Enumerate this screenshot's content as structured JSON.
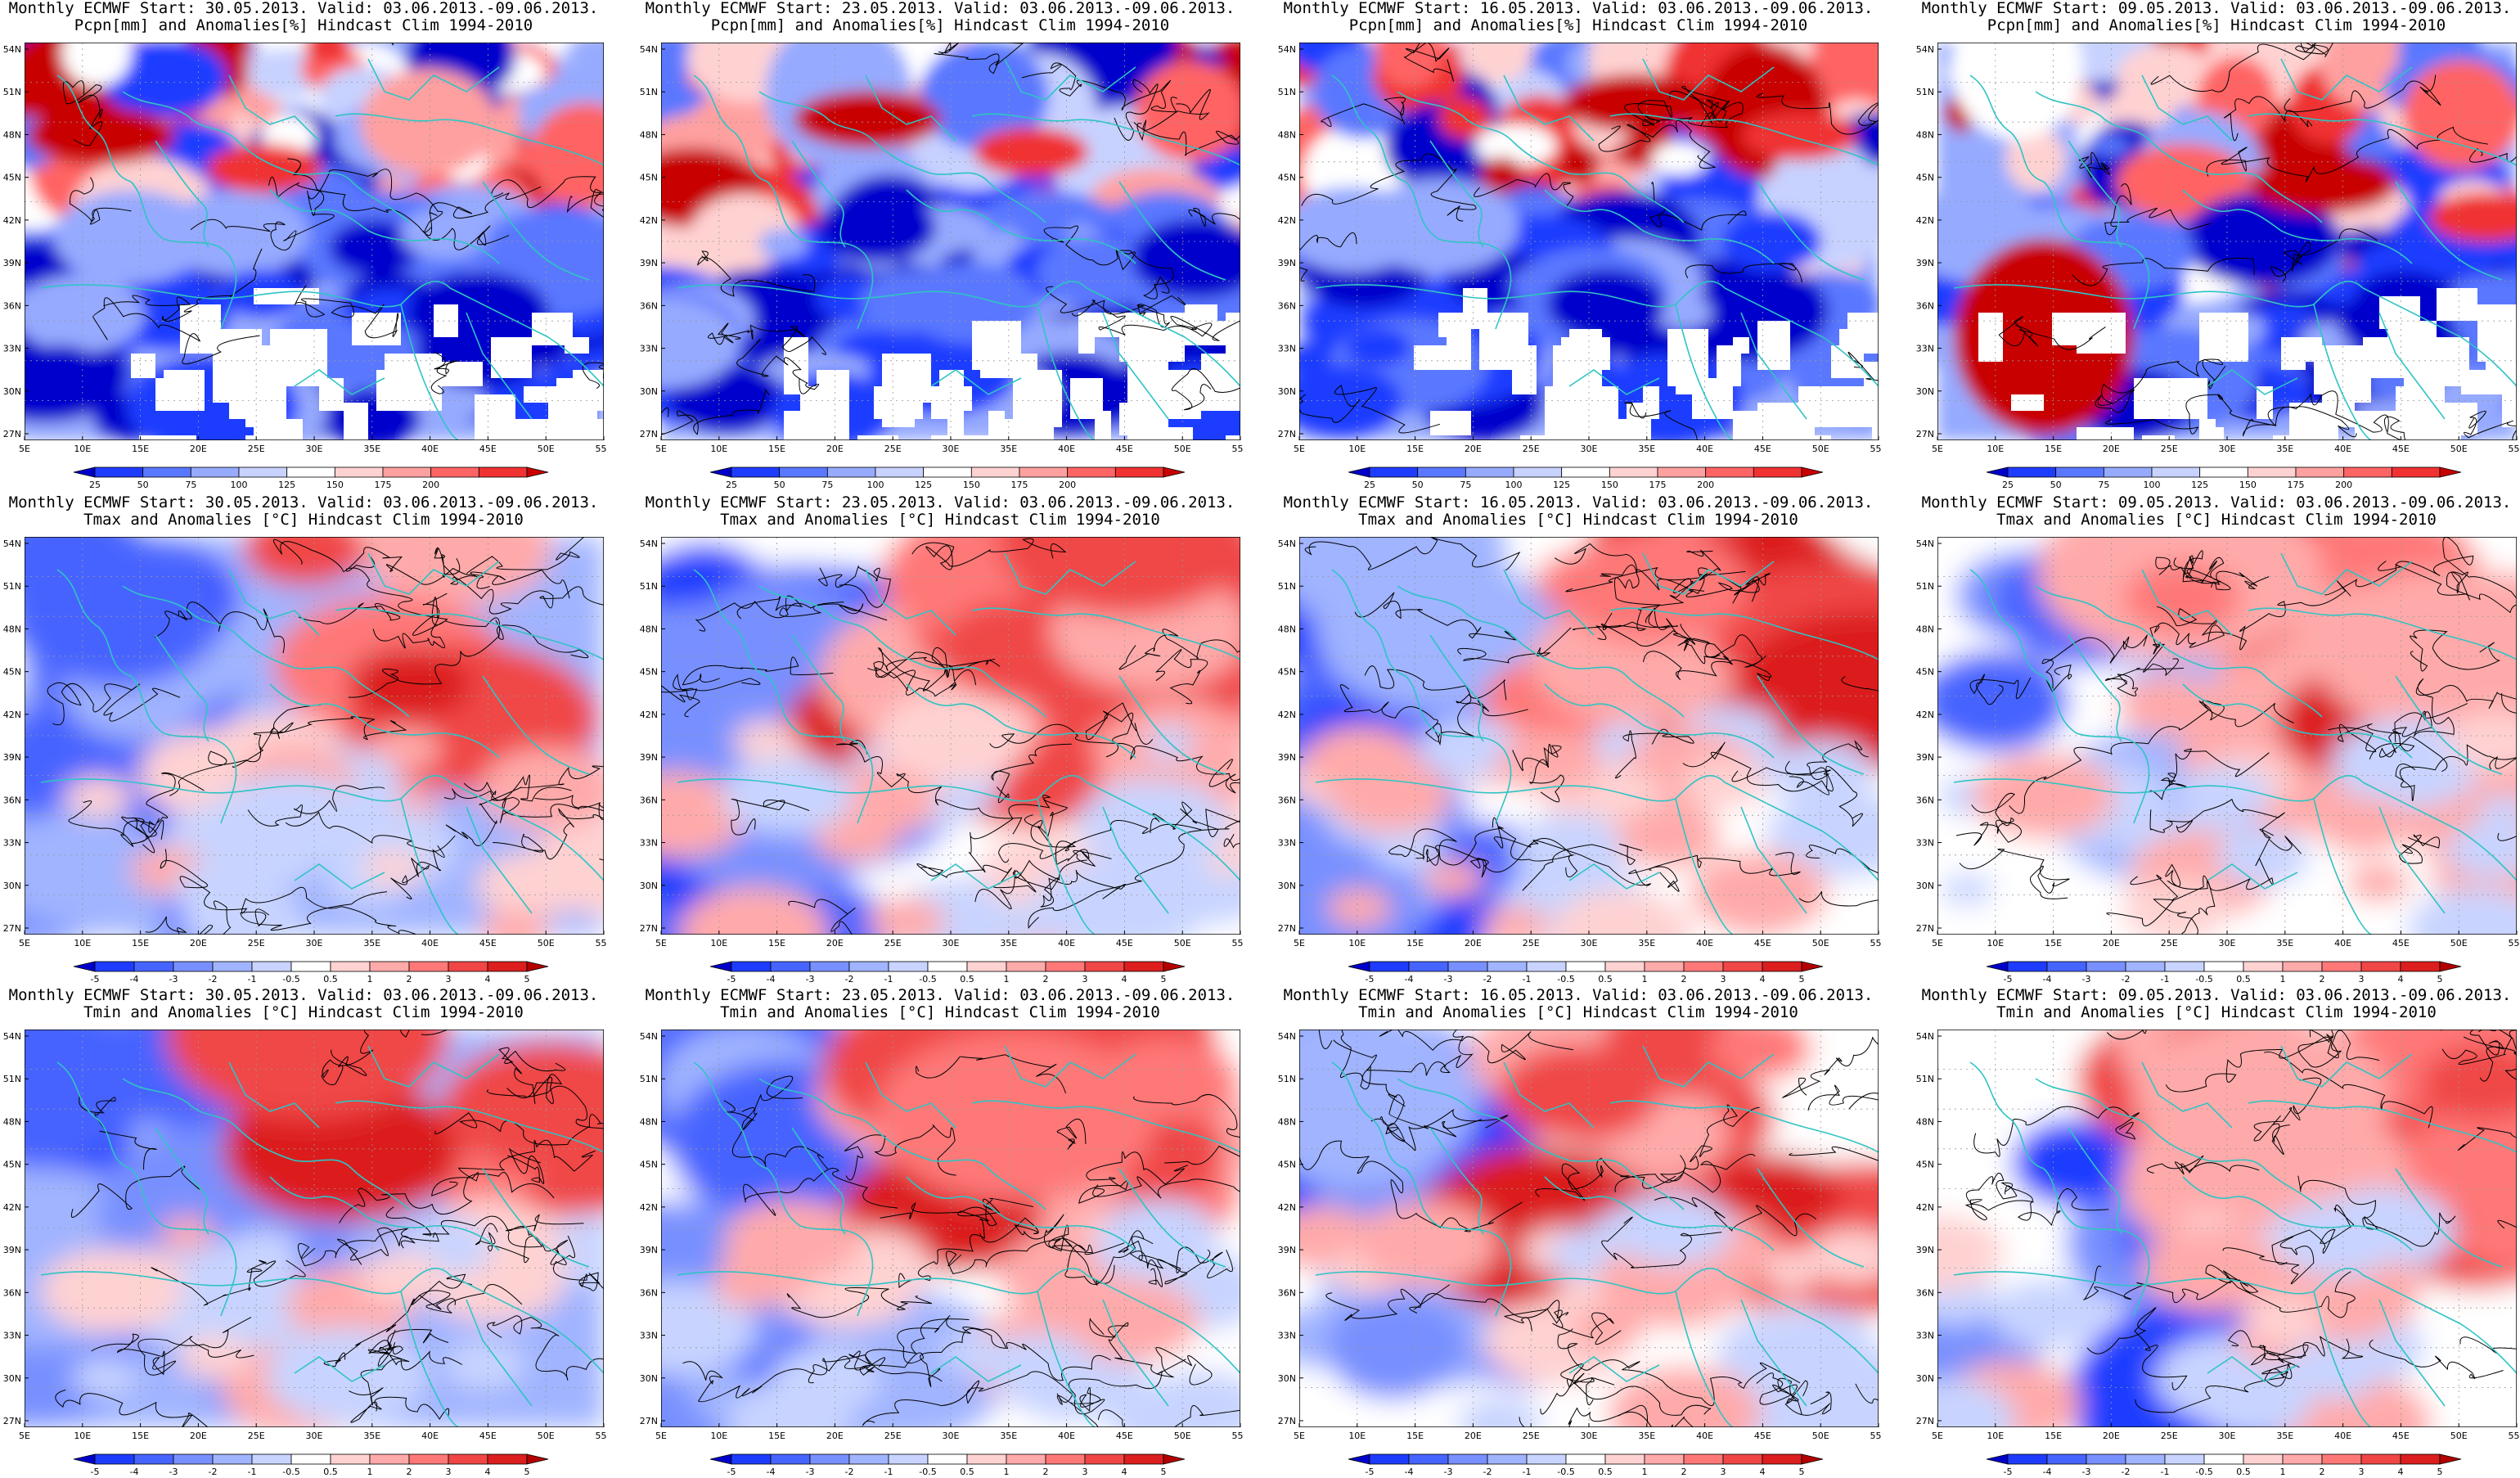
{
  "figure": {
    "lon_ticks": [
      "5E",
      "10E",
      "15E",
      "20E",
      "25E",
      "30E",
      "35E",
      "40E",
      "45E",
      "50E",
      "55E"
    ],
    "lat_ticks": [
      "54N",
      "51N",
      "48N",
      "45N",
      "42N",
      "39N",
      "36N",
      "33N",
      "30N",
      "27N"
    ],
    "rows": [
      {
        "variable": "precipitation",
        "subtitle": "Pcpn[mm] and Anomalies[%] Hindcast Clim 1994-2010",
        "colorbar": {
          "ticks": [
            "25",
            "50",
            "75",
            "100",
            "125",
            "150",
            "175",
            "200"
          ],
          "colors": [
            "#0000cc",
            "#1e3cff",
            "#5a78ff",
            "#96aaff",
            "#c8d2ff",
            "#ffffff",
            "#ffd2d2",
            "#ffa0a0",
            "#ff6464",
            "#f03232",
            "#c80000"
          ]
        }
      },
      {
        "variable": "tmax",
        "subtitle": "Tmax and Anomalies [°C] Hindcast Clim 1994-2010",
        "colorbar": {
          "ticks": [
            "-5",
            "-4",
            "-3",
            "-2",
            "-1",
            "-0.5",
            "0.5",
            "1",
            "2",
            "3",
            "4",
            "5"
          ],
          "colors": [
            "#0000cc",
            "#1e3cff",
            "#4664ff",
            "#7890ff",
            "#a0b4ff",
            "#c8d4ff",
            "#ffffff",
            "#ffd2d2",
            "#ffaaaa",
            "#ff7878",
            "#f04646",
            "#dc1e1e",
            "#b40000"
          ]
        }
      },
      {
        "variable": "tmin",
        "subtitle": "Tmin and Anomalies [°C] Hindcast Clim 1994-2010",
        "colorbar": {
          "ticks": [
            "-5",
            "-4",
            "-3",
            "-2",
            "-1",
            "-0.5",
            "0.5",
            "1",
            "2",
            "3",
            "4",
            "5"
          ],
          "colors": [
            "#0000cc",
            "#1e3cff",
            "#4664ff",
            "#7890ff",
            "#a0b4ff",
            "#c8d4ff",
            "#ffffff",
            "#ffd2d2",
            "#ffaaaa",
            "#ff7878",
            "#f04646",
            "#dc1e1e",
            "#b40000"
          ]
        }
      }
    ],
    "columns": [
      {
        "title": "Monthly ECMWF Start: 30.05.2013. Valid: 03.06.2013.-09.06.2013."
      },
      {
        "title": "Monthly ECMWF Start: 23.05.2013. Valid: 03.06.2013.-09.06.2013."
      },
      {
        "title": "Monthly ECMWF Start: 16.05.2013. Valid: 03.06.2013.-09.06.2013."
      },
      {
        "title": "Monthly ECMWF Start: 09.05.2013. Valid: 03.06.2013.-09.06.2013."
      }
    ],
    "colors": {
      "coast": "#2fc4c4",
      "contour": "#000000",
      "missing": "#ffffff",
      "frame": "#000000"
    }
  }
}
